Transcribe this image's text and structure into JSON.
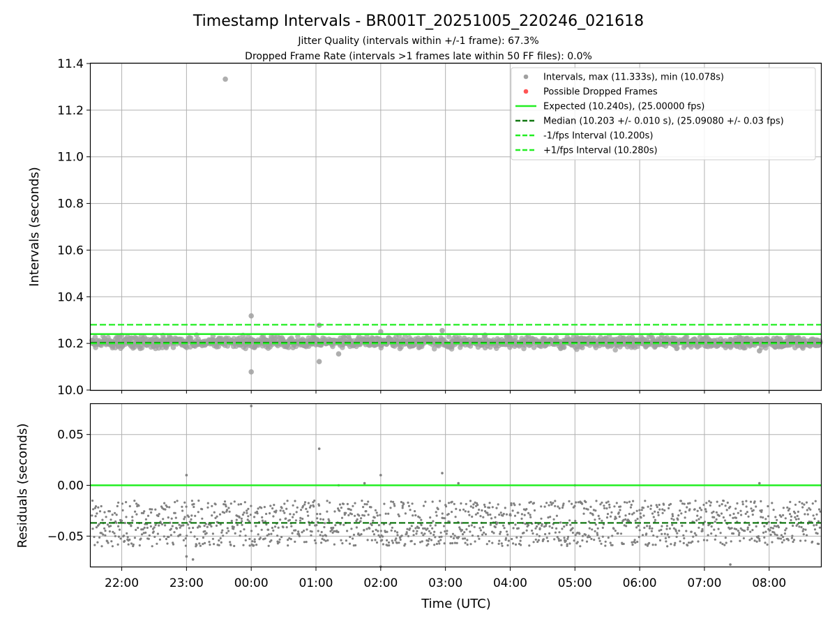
{
  "title": "Timestamp Intervals - BR001T_20251005_220246_021618",
  "subtitle_jitter": "Jitter Quality (intervals within +/-1 frame): 67.3%",
  "subtitle_dropped": "Dropped Frame Rate (intervals >1 frames late within 50 FF files): 0.0%",
  "colors": {
    "points": "#808080",
    "points_light": "#a0a0a0",
    "dropped": "#ff5555",
    "expected": "#22ee22",
    "median": "#117711",
    "fps_band": "#22ee22",
    "grid": "#b0b0b0"
  },
  "chart_data": [
    {
      "type": "scatter",
      "name": "intervals",
      "ylabel": "Intervals (seconds)",
      "ylim": [
        10.0,
        11.4
      ],
      "yticks": [
        10.0,
        10.2,
        10.4,
        10.6,
        10.8,
        11.0,
        11.2,
        11.4
      ],
      "ytick_labels": [
        "10.0",
        "10.2",
        "10.4",
        "10.6",
        "10.8",
        "11.0",
        "11.2",
        "11.4"
      ],
      "grid": true,
      "legend_position": "top-right",
      "legend": [
        {
          "label": "Intervals, max (11.333s), min (10.078s)",
          "kind": "point",
          "color": "#a0a0a0"
        },
        {
          "label": "Possible Dropped Frames",
          "kind": "point",
          "color": "#ff5555"
        },
        {
          "label": "Expected (10.240s), (25.00000 fps)",
          "kind": "solid",
          "color": "#22ee22"
        },
        {
          "label": "Median (10.203 +/- 0.010 s), (25.09080 +/- 0.03 fps)",
          "kind": "dashed",
          "color": "#117711"
        },
        {
          "label": "-1/fps Interval (10.200s)",
          "kind": "dashed",
          "color": "#22ee22"
        },
        {
          "label": "+1/fps Interval (10.280s)",
          "kind": "dashed",
          "color": "#22ee22"
        }
      ],
      "series": {
        "expected": 10.24,
        "median": 10.203,
        "median_std": 0.01,
        "minus_fps": 10.2,
        "plus_fps": 10.28,
        "max": 11.333,
        "min": 10.078,
        "jitter_range": [
          10.17,
          10.24
        ],
        "outliers": [
          {
            "t": 1.6,
            "y": 11.333
          },
          {
            "t": 2.0,
            "y": 10.318
          },
          {
            "t": 2.0,
            "y": 10.078
          },
          {
            "t": 3.05,
            "y": 10.278
          },
          {
            "t": 3.05,
            "y": 10.122
          },
          {
            "t": 3.35,
            "y": 10.155
          },
          {
            "t": 4.0,
            "y": 10.25
          },
          {
            "t": 4.95,
            "y": 10.255
          },
          {
            "t": 9.85,
            "y": 10.168
          }
        ]
      }
    },
    {
      "type": "scatter",
      "name": "residuals",
      "ylabel": "Residuals (seconds)",
      "xlabel": "Time (UTC)",
      "ylim": [
        -0.08,
        0.08
      ],
      "yticks": [
        -0.05,
        0.0,
        0.05
      ],
      "ytick_labels": [
        "−0.05",
        "0.00",
        "0.05"
      ],
      "xlim": [
        -0.48,
        10.8
      ],
      "xticks": [
        0,
        1,
        2,
        3,
        4,
        5,
        6,
        7,
        8,
        9,
        10
      ],
      "xtick_labels": [
        "22:00",
        "23:00",
        "00:00",
        "01:00",
        "02:00",
        "03:00",
        "04:00",
        "05:00",
        "06:00",
        "07:00",
        "08:00"
      ],
      "grid": true,
      "series": {
        "zero": 0.0,
        "median_residual": -0.037,
        "jitter_range": [
          -0.06,
          -0.015
        ],
        "outliers": [
          {
            "t": 1.0,
            "y": 0.01
          },
          {
            "t": 1.0,
            "y": -0.07
          },
          {
            "t": 1.1,
            "y": -0.073
          },
          {
            "t": 2.0,
            "y": 0.078
          },
          {
            "t": 3.05,
            "y": 0.036
          },
          {
            "t": 3.35,
            "y": 0.0
          },
          {
            "t": 3.75,
            "y": 0.002
          },
          {
            "t": 4.0,
            "y": 0.01
          },
          {
            "t": 4.0,
            "y": -0.08
          },
          {
            "t": 4.95,
            "y": 0.012
          },
          {
            "t": 5.2,
            "y": 0.002
          },
          {
            "t": 7.0,
            "y": 0.0
          },
          {
            "t": 9.4,
            "y": -0.078
          },
          {
            "t": 9.85,
            "y": 0.002
          }
        ]
      }
    }
  ]
}
